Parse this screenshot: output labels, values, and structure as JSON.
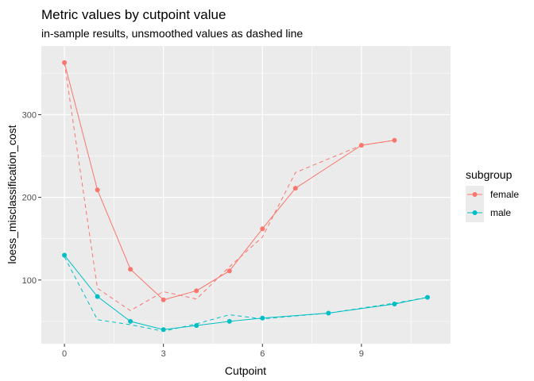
{
  "chart_data": {
    "type": "line",
    "title": "Metric values by cutpoint value",
    "subtitle": "in-sample results, unsmoothed values as dashed line",
    "xlabel": "Cutpoint",
    "ylabel": "loess_misclassification_cost",
    "xlim": [
      -0.7,
      11.7
    ],
    "ylim": [
      23,
      383
    ],
    "x_ticks": [
      0,
      3,
      6,
      9
    ],
    "y_ticks": [
      100,
      200,
      300
    ],
    "grid": true,
    "legend": {
      "title": "subgroup",
      "position": "right",
      "entries": [
        {
          "label": "female",
          "color": "#F8766D"
        },
        {
          "label": "male",
          "color": "#00BFC4"
        }
      ]
    },
    "series": [
      {
        "name": "female",
        "color": "#F8766D",
        "smoothed": {
          "x": [
            0,
            1,
            2,
            3,
            4,
            5,
            6,
            7,
            9,
            10
          ],
          "y": [
            363,
            209,
            113,
            76,
            87,
            111,
            162,
            211,
            263,
            269
          ]
        },
        "unsmoothed": {
          "x": [
            0,
            1,
            2,
            3,
            4,
            5,
            6,
            7,
            9,
            10
          ],
          "y": [
            363,
            90,
            63,
            86,
            77,
            116,
            152,
            230,
            263,
            269
          ]
        }
      },
      {
        "name": "male",
        "color": "#00BFC4",
        "smoothed": {
          "x": [
            0,
            1,
            2,
            3,
            4,
            5,
            6,
            8,
            10,
            11
          ],
          "y": [
            130,
            80,
            50,
            40,
            45,
            50,
            54,
            60,
            71,
            79
          ]
        },
        "unsmoothed": {
          "x": [
            0,
            1,
            2,
            3,
            4,
            5,
            6,
            8,
            10,
            11
          ],
          "y": [
            128,
            52,
            46,
            38,
            47,
            58,
            53,
            60,
            72,
            79
          ]
        }
      }
    ]
  }
}
